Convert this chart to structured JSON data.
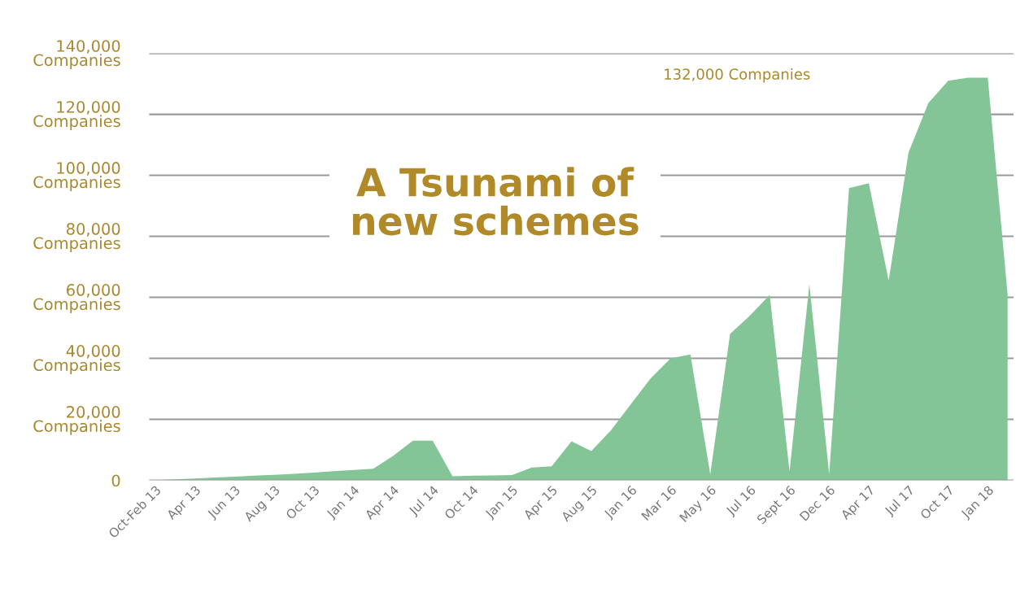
{
  "chart_data": {
    "type": "area",
    "title": "A Tsunami of\nnew schemes",
    "categories": [
      "Oct-Feb 13",
      null,
      "Apr 13",
      null,
      "Jun 13",
      null,
      "Aug 13",
      null,
      "Oct 13",
      null,
      "Jan 14",
      null,
      "Apr 14",
      null,
      "Jul 14",
      null,
      "Oct 14",
      null,
      "Jan 15",
      null,
      "Apr 15",
      null,
      "Aug 15",
      null,
      "Jan 16",
      null,
      "Mar 16",
      null,
      "May 16",
      null,
      "Jul 16",
      null,
      "Sept 16",
      null,
      "Dec 16",
      null,
      "Apr 17",
      null,
      "Jul 17",
      null,
      "Oct 17",
      null,
      "Jan 18",
      null
    ],
    "series": [
      {
        "color": "#84c597",
        "values": [
          0,
          300,
          600,
          900,
          1200,
          1500,
          1800,
          2100,
          2500,
          3000,
          3400,
          3800,
          8000,
          13000,
          13000,
          1300,
          1500,
          1600,
          1700,
          4200,
          4600,
          12800,
          9600,
          16500,
          25000,
          33500,
          40000,
          41300,
          2000,
          48000,
          54000,
          60800,
          3000,
          64300,
          2000,
          95800,
          97400,
          65500,
          107400,
          123700,
          131000,
          132000,
          132000,
          60800
        ]
      }
    ],
    "ylim": [
      0,
      140000
    ],
    "yticks": [
      0,
      {
        "value": 20000,
        "label": "20,000\nCompanies"
      },
      {
        "value": 40000,
        "label": "40,000\nCompanies"
      },
      {
        "value": 60000,
        "label": "60,000\nCompanies"
      },
      {
        "value": 80000,
        "label": "80,000\nCompanies"
      },
      {
        "value": 100000,
        "label": "100,000\nCompanies"
      },
      {
        "value": 120000,
        "label": "120,000\nCompanies"
      },
      {
        "value": 140000,
        "label": "140,000\nCompanies"
      }
    ],
    "grid": "y",
    "annotations": [
      "132,000 Companies"
    ]
  }
}
